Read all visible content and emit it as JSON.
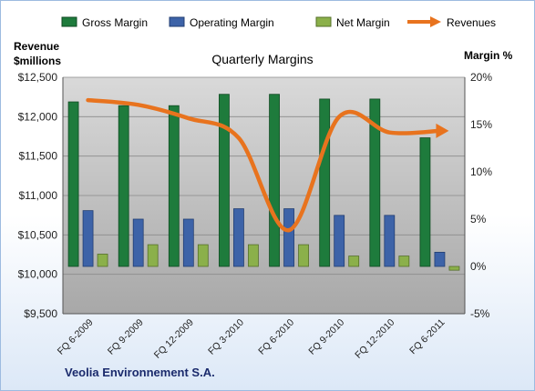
{
  "chart_data": {
    "type": "bar",
    "title": "Quarterly Margins",
    "footer": "Veolia Environnement S.A.",
    "left_axis_label_line1": "Revenue",
    "left_axis_label_line2": "$millions",
    "right_axis_label": "Margin %",
    "categories": [
      "FQ 6-2009",
      "FQ 9-2009",
      "FQ 12-2009",
      "FQ 3-2010",
      "FQ 6-2010",
      "FQ 9-2010",
      "FQ 12-2010",
      "FQ 6-2011"
    ],
    "left_axis": {
      "ylim": [
        9500,
        12500
      ],
      "ticks": [
        "$9,500",
        "$10,000",
        "$10,500",
        "$11,000",
        "$11,500",
        "$12,000",
        "$12,500"
      ],
      "tick_values": [
        9500,
        10000,
        10500,
        11000,
        11500,
        12000,
        12500
      ]
    },
    "right_axis": {
      "ylim": [
        -5,
        20
      ],
      "ticks": [
        "-5%",
        "0%",
        "5%",
        "10%",
        "15%",
        "20%"
      ],
      "tick_values": [
        -5,
        0,
        5,
        10,
        15,
        20
      ]
    },
    "bar_series": [
      {
        "name": "Gross Margin",
        "axis": "right",
        "color": "#1e7b3c",
        "values": [
          17.4,
          17.0,
          17.0,
          18.2,
          18.2,
          17.7,
          17.7,
          13.6
        ]
      },
      {
        "name": "Operating Margin",
        "axis": "right",
        "color": "#3d63a8",
        "values": [
          5.9,
          5.0,
          5.0,
          6.1,
          6.1,
          5.4,
          5.4,
          1.5
        ]
      },
      {
        "name": "Net Margin",
        "axis": "right",
        "color": "#8bb04a",
        "values": [
          1.3,
          2.3,
          2.3,
          2.3,
          2.3,
          1.1,
          1.1,
          -0.4
        ]
      }
    ],
    "line_series": [
      {
        "name": "Revenues",
        "axis": "left",
        "color": "#e8731e",
        "values": [
          12210,
          12150,
          11980,
          11730,
          10560,
          12000,
          11800,
          11820
        ]
      }
    ],
    "grid": true,
    "legend_position": "top"
  }
}
